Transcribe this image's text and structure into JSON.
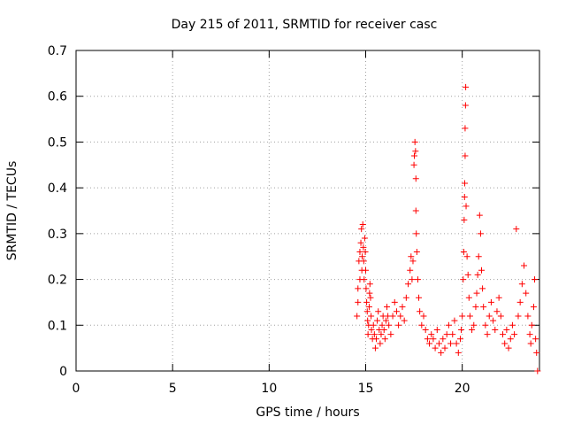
{
  "chart_data": {
    "type": "scatter",
    "title": "Day 215 of 2011, SRMTID for receiver casc",
    "xlabel": "GPS time / hours",
    "ylabel": "SRMTID / TECUs",
    "xlim": [
      0,
      24
    ],
    "ylim": [
      0,
      0.7
    ],
    "x_ticks": [
      0,
      5,
      10,
      15,
      20
    ],
    "y_ticks": [
      0,
      0.1,
      0.2,
      0.3,
      0.4,
      0.5,
      0.6,
      0.7
    ],
    "x_tick_labels": [
      "0",
      "5",
      "10",
      "15",
      "20"
    ],
    "y_tick_labels": [
      "0",
      "0.1",
      "0.2",
      "0.3",
      "0.4",
      "0.5",
      "0.6",
      "0.7"
    ],
    "grid": true,
    "marker": "+",
    "color": "#ff0000",
    "series": [
      {
        "name": "SRMTID",
        "points": [
          [
            14.55,
            0.12
          ],
          [
            14.6,
            0.15
          ],
          [
            14.6,
            0.18
          ],
          [
            14.65,
            0.24
          ],
          [
            14.7,
            0.2
          ],
          [
            14.7,
            0.26
          ],
          [
            14.75,
            0.28
          ],
          [
            14.78,
            0.31
          ],
          [
            14.8,
            0.22
          ],
          [
            14.82,
            0.25
          ],
          [
            14.85,
            0.32
          ],
          [
            14.88,
            0.27
          ],
          [
            14.9,
            0.24
          ],
          [
            14.92,
            0.2
          ],
          [
            14.95,
            0.29
          ],
          [
            14.98,
            0.26
          ],
          [
            15.0,
            0.22
          ],
          [
            15.02,
            0.18
          ],
          [
            15.05,
            0.15
          ],
          [
            15.08,
            0.13
          ],
          [
            15.1,
            0.11
          ],
          [
            15.12,
            0.08
          ],
          [
            15.15,
            0.1
          ],
          [
            15.18,
            0.14
          ],
          [
            15.2,
            0.17
          ],
          [
            15.22,
            0.19
          ],
          [
            15.25,
            0.16
          ],
          [
            15.28,
            0.12
          ],
          [
            15.3,
            0.09
          ],
          [
            15.35,
            0.07
          ],
          [
            15.4,
            0.1
          ],
          [
            15.45,
            0.08
          ],
          [
            15.5,
            0.05
          ],
          [
            15.55,
            0.07
          ],
          [
            15.6,
            0.11
          ],
          [
            15.65,
            0.13
          ],
          [
            15.7,
            0.09
          ],
          [
            15.75,
            0.06
          ],
          [
            15.8,
            0.08
          ],
          [
            15.85,
            0.1
          ],
          [
            15.9,
            0.12
          ],
          [
            15.95,
            0.09
          ],
          [
            16.0,
            0.07
          ],
          [
            16.05,
            0.11
          ],
          [
            16.1,
            0.14
          ],
          [
            16.15,
            0.12
          ],
          [
            16.2,
            0.1
          ],
          [
            16.3,
            0.08
          ],
          [
            16.4,
            0.12
          ],
          [
            16.5,
            0.15
          ],
          [
            16.6,
            0.13
          ],
          [
            16.7,
            0.1
          ],
          [
            16.8,
            0.12
          ],
          [
            16.9,
            0.14
          ],
          [
            17.0,
            0.11
          ],
          [
            17.1,
            0.16
          ],
          [
            17.2,
            0.19
          ],
          [
            17.3,
            0.22
          ],
          [
            17.35,
            0.25
          ],
          [
            17.4,
            0.2
          ],
          [
            17.45,
            0.24
          ],
          [
            17.5,
            0.45
          ],
          [
            17.52,
            0.47
          ],
          [
            17.55,
            0.5
          ],
          [
            17.58,
            0.48
          ],
          [
            17.6,
            0.42
          ],
          [
            17.6,
            0.35
          ],
          [
            17.62,
            0.3
          ],
          [
            17.65,
            0.26
          ],
          [
            17.7,
            0.2
          ],
          [
            17.75,
            0.16
          ],
          [
            17.8,
            0.13
          ],
          [
            17.9,
            0.1
          ],
          [
            18.0,
            0.12
          ],
          [
            18.1,
            0.09
          ],
          [
            18.2,
            0.07
          ],
          [
            18.3,
            0.06
          ],
          [
            18.4,
            0.08
          ],
          [
            18.5,
            0.07
          ],
          [
            18.6,
            0.05
          ],
          [
            18.7,
            0.09
          ],
          [
            18.8,
            0.06
          ],
          [
            18.9,
            0.04
          ],
          [
            19.0,
            0.07
          ],
          [
            19.1,
            0.05
          ],
          [
            19.2,
            0.08
          ],
          [
            19.3,
            0.1
          ],
          [
            19.4,
            0.06
          ],
          [
            19.5,
            0.08
          ],
          [
            19.6,
            0.11
          ],
          [
            19.7,
            0.06
          ],
          [
            19.8,
            0.04
          ],
          [
            19.9,
            0.07
          ],
          [
            19.95,
            0.09
          ],
          [
            20.0,
            0.12
          ],
          [
            20.05,
            0.2
          ],
          [
            20.08,
            0.26
          ],
          [
            20.1,
            0.33
          ],
          [
            20.12,
            0.38
          ],
          [
            20.13,
            0.41
          ],
          [
            20.15,
            0.47
          ],
          [
            20.15,
            0.53
          ],
          [
            20.17,
            0.58
          ],
          [
            20.18,
            0.62
          ],
          [
            20.2,
            0.36
          ],
          [
            20.25,
            0.25
          ],
          [
            20.3,
            0.21
          ],
          [
            20.35,
            0.16
          ],
          [
            20.4,
            0.12
          ],
          [
            20.5,
            0.09
          ],
          [
            20.6,
            0.1
          ],
          [
            20.7,
            0.14
          ],
          [
            20.75,
            0.17
          ],
          [
            20.8,
            0.21
          ],
          [
            20.85,
            0.25
          ],
          [
            20.9,
            0.34
          ],
          [
            20.95,
            0.3
          ],
          [
            21.0,
            0.22
          ],
          [
            21.05,
            0.18
          ],
          [
            21.1,
            0.14
          ],
          [
            21.2,
            0.1
          ],
          [
            21.3,
            0.08
          ],
          [
            21.4,
            0.12
          ],
          [
            21.5,
            0.15
          ],
          [
            21.6,
            0.11
          ],
          [
            21.7,
            0.09
          ],
          [
            21.8,
            0.13
          ],
          [
            21.9,
            0.16
          ],
          [
            22.0,
            0.12
          ],
          [
            22.1,
            0.08
          ],
          [
            22.2,
            0.06
          ],
          [
            22.3,
            0.09
          ],
          [
            22.4,
            0.05
          ],
          [
            22.5,
            0.07
          ],
          [
            22.6,
            0.1
          ],
          [
            22.7,
            0.08
          ],
          [
            22.8,
            0.31
          ],
          [
            22.9,
            0.12
          ],
          [
            23.0,
            0.15
          ],
          [
            23.1,
            0.19
          ],
          [
            23.2,
            0.23
          ],
          [
            23.3,
            0.17
          ],
          [
            23.4,
            0.12
          ],
          [
            23.5,
            0.08
          ],
          [
            23.55,
            0.06
          ],
          [
            23.6,
            0.1
          ],
          [
            23.7,
            0.14
          ],
          [
            23.75,
            0.2
          ],
          [
            23.8,
            0.07
          ],
          [
            23.85,
            0.04
          ],
          [
            23.9,
            0.0
          ]
        ]
      }
    ]
  }
}
